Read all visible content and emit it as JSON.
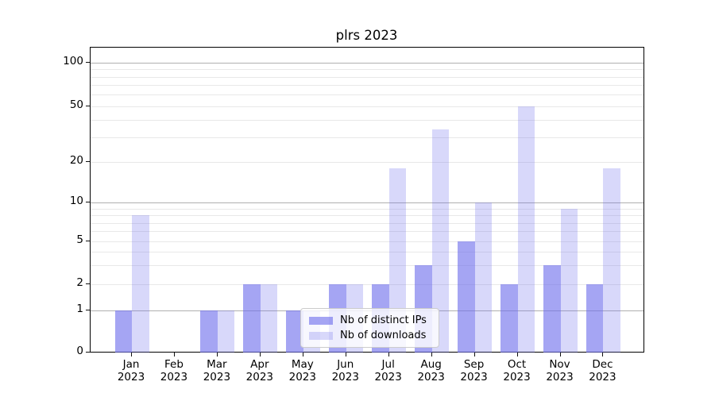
{
  "title": "plrs 2023",
  "legend": {
    "items": [
      {
        "label": "Nb of distinct IPs",
        "color_key": "bar_dark"
      },
      {
        "label": "Nb of downloads",
        "color_key": "bar_light"
      }
    ]
  },
  "y_axis": {
    "tick_labels": [
      "100",
      "50",
      "20",
      "10",
      "5",
      "2",
      "1",
      "0"
    ],
    "tick_values": [
      100,
      50,
      20,
      10,
      5,
      2,
      1,
      0
    ]
  },
  "x_axis": {
    "months": [
      "Jan",
      "Feb",
      "Mar",
      "Apr",
      "May",
      "Jun",
      "Jul",
      "Aug",
      "Sep",
      "Oct",
      "Nov",
      "Dec"
    ],
    "year": "2023"
  },
  "colors": {
    "bar_dark": "rgba(110,110,235,0.62)",
    "bar_light": "rgba(110,110,235,0.27)",
    "grid_major": "#b0b0b0",
    "grid_minor": "#e8e8e8",
    "spine": "#000000"
  },
  "chart_data": {
    "type": "bar",
    "title": "plrs 2023",
    "categories": [
      "Jan 2023",
      "Feb 2023",
      "Mar 2023",
      "Apr 2023",
      "May 2023",
      "Jun 2023",
      "Jul 2023",
      "Aug 2023",
      "Sep 2023",
      "Oct 2023",
      "Nov 2023",
      "Dec 2023"
    ],
    "series": [
      {
        "name": "Nb of distinct IPs",
        "values": [
          1,
          0,
          1,
          2,
          1,
          2,
          2,
          3,
          5,
          2,
          3,
          2
        ]
      },
      {
        "name": "Nb of downloads",
        "values": [
          8,
          0,
          1,
          2,
          1,
          2,
          18,
          34,
          10,
          50,
          9,
          18
        ]
      }
    ],
    "xlabel": "",
    "ylabel": "",
    "yscale": "symlog",
    "y_ticks": [
      0,
      1,
      2,
      5,
      10,
      20,
      50,
      100
    ],
    "ylim": [
      0,
      130
    ],
    "grid": true,
    "legend_position": "lower center"
  }
}
